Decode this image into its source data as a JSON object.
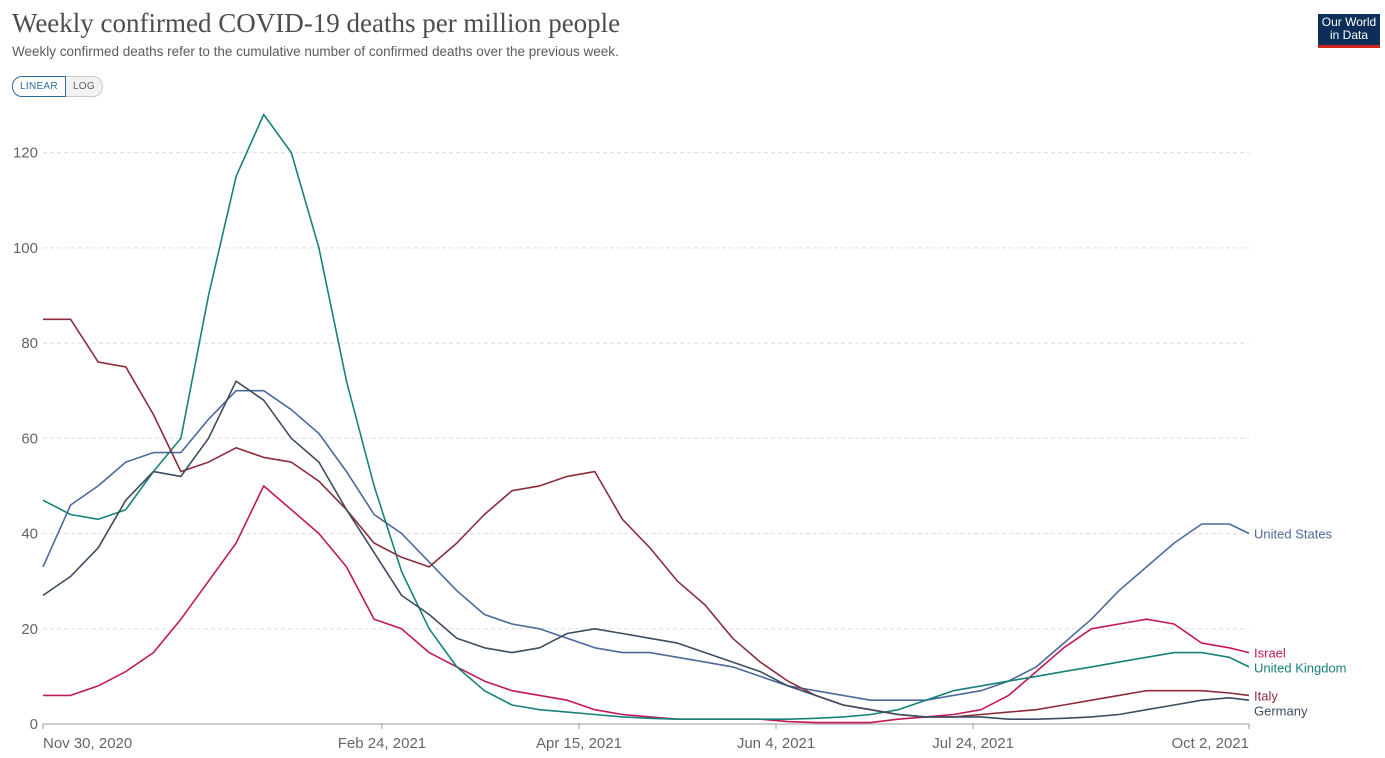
{
  "header": {
    "title": "Weekly confirmed COVID-19 deaths per million people",
    "subtitle": "Weekly confirmed deaths refer to the cumulative number of confirmed deaths over the previous week.",
    "logo_line1": "Our World",
    "logo_line2": "in Data"
  },
  "controls": {
    "linear_label": "LINEAR",
    "log_label": "LOG",
    "selected": "LINEAR"
  },
  "chart_data": {
    "type": "line",
    "title": "Weekly confirmed COVID-19 deaths per million people",
    "subtitle": "Weekly confirmed deaths refer to the cumulative number of confirmed deaths over the previous week.",
    "xlabel": "",
    "ylabel": "",
    "x_range": [
      "2020-11-30",
      "2021-10-02"
    ],
    "ylim": [
      0,
      130
    ],
    "x_ticks": [
      "Nov 30, 2020",
      "Feb 24, 2021",
      "Apr 15, 2021",
      "Jun 4, 2021",
      "Jul 24, 2021",
      "Oct 2, 2021"
    ],
    "y_ticks": [
      0,
      20,
      40,
      60,
      80,
      100,
      120
    ],
    "grid": "horizontal dashed",
    "legend": "inline labels at line ends (right)",
    "series": [
      {
        "name": "United States",
        "color": "#4c6a9c",
        "points": [
          [
            "2020-11-30",
            33
          ],
          [
            "2020-12-07",
            46
          ],
          [
            "2020-12-14",
            50
          ],
          [
            "2020-12-21",
            55
          ],
          [
            "2020-12-28",
            57
          ],
          [
            "2021-01-04",
            57
          ],
          [
            "2021-01-11",
            64
          ],
          [
            "2021-01-18",
            70
          ],
          [
            "2021-01-25",
            70
          ],
          [
            "2021-02-01",
            66
          ],
          [
            "2021-02-08",
            61
          ],
          [
            "2021-02-15",
            53
          ],
          [
            "2021-02-22",
            44
          ],
          [
            "2021-03-01",
            40
          ],
          [
            "2021-03-08",
            34
          ],
          [
            "2021-03-15",
            28
          ],
          [
            "2021-03-22",
            23
          ],
          [
            "2021-03-29",
            21
          ],
          [
            "2021-04-05",
            20
          ],
          [
            "2021-04-12",
            18
          ],
          [
            "2021-04-19",
            16
          ],
          [
            "2021-04-26",
            15
          ],
          [
            "2021-05-03",
            15
          ],
          [
            "2021-05-10",
            14
          ],
          [
            "2021-05-17",
            13
          ],
          [
            "2021-05-24",
            12
          ],
          [
            "2021-05-31",
            10
          ],
          [
            "2021-06-07",
            8
          ],
          [
            "2021-06-14",
            7
          ],
          [
            "2021-06-21",
            6
          ],
          [
            "2021-06-28",
            5
          ],
          [
            "2021-07-05",
            5
          ],
          [
            "2021-07-12",
            5
          ],
          [
            "2021-07-19",
            6
          ],
          [
            "2021-07-26",
            7
          ],
          [
            "2021-08-02",
            9
          ],
          [
            "2021-08-09",
            12
          ],
          [
            "2021-08-16",
            17
          ],
          [
            "2021-08-23",
            22
          ],
          [
            "2021-08-30",
            28
          ],
          [
            "2021-09-06",
            33
          ],
          [
            "2021-09-13",
            38
          ],
          [
            "2021-09-20",
            42
          ],
          [
            "2021-09-27",
            42
          ],
          [
            "2021-10-02",
            40
          ]
        ]
      },
      {
        "name": "Israel",
        "color": "#c2185b",
        "points": [
          [
            "2020-11-30",
            6
          ],
          [
            "2020-12-07",
            6
          ],
          [
            "2020-12-14",
            8
          ],
          [
            "2020-12-21",
            11
          ],
          [
            "2020-12-28",
            15
          ],
          [
            "2021-01-04",
            22
          ],
          [
            "2021-01-11",
            30
          ],
          [
            "2021-01-18",
            38
          ],
          [
            "2021-01-25",
            50
          ],
          [
            "2021-02-01",
            45
          ],
          [
            "2021-02-08",
            40
          ],
          [
            "2021-02-15",
            33
          ],
          [
            "2021-02-22",
            22
          ],
          [
            "2021-03-01",
            20
          ],
          [
            "2021-03-08",
            15
          ],
          [
            "2021-03-15",
            12
          ],
          [
            "2021-03-22",
            9
          ],
          [
            "2021-03-29",
            7
          ],
          [
            "2021-04-05",
            6
          ],
          [
            "2021-04-12",
            5
          ],
          [
            "2021-04-19",
            3
          ],
          [
            "2021-04-26",
            2
          ],
          [
            "2021-05-03",
            1.5
          ],
          [
            "2021-05-10",
            1
          ],
          [
            "2021-05-17",
            1
          ],
          [
            "2021-05-24",
            1
          ],
          [
            "2021-05-31",
            1
          ],
          [
            "2021-06-07",
            0.5
          ],
          [
            "2021-06-14",
            0.3
          ],
          [
            "2021-06-21",
            0.3
          ],
          [
            "2021-06-28",
            0.3
          ],
          [
            "2021-07-05",
            1
          ],
          [
            "2021-07-12",
            1.5
          ],
          [
            "2021-07-19",
            2
          ],
          [
            "2021-07-26",
            3
          ],
          [
            "2021-08-02",
            6
          ],
          [
            "2021-08-09",
            11
          ],
          [
            "2021-08-16",
            16
          ],
          [
            "2021-08-23",
            20
          ],
          [
            "2021-08-30",
            21
          ],
          [
            "2021-09-06",
            22
          ],
          [
            "2021-09-13",
            21
          ],
          [
            "2021-09-20",
            17
          ],
          [
            "2021-09-27",
            16
          ],
          [
            "2021-10-02",
            15
          ]
        ]
      },
      {
        "name": "United Kingdom",
        "color": "#18817a",
        "points": [
          [
            "2020-11-30",
            47
          ],
          [
            "2020-12-07",
            44
          ],
          [
            "2020-12-14",
            43
          ],
          [
            "2020-12-21",
            45
          ],
          [
            "2020-12-28",
            53
          ],
          [
            "2021-01-04",
            60
          ],
          [
            "2021-01-11",
            90
          ],
          [
            "2021-01-18",
            115
          ],
          [
            "2021-01-25",
            128
          ],
          [
            "2021-02-01",
            120
          ],
          [
            "2021-02-08",
            100
          ],
          [
            "2021-02-15",
            72
          ],
          [
            "2021-02-22",
            50
          ],
          [
            "2021-03-01",
            32
          ],
          [
            "2021-03-08",
            20
          ],
          [
            "2021-03-15",
            12
          ],
          [
            "2021-03-22",
            7
          ],
          [
            "2021-03-29",
            4
          ],
          [
            "2021-04-05",
            3
          ],
          [
            "2021-04-12",
            2.5
          ],
          [
            "2021-04-19",
            2
          ],
          [
            "2021-04-26",
            1.5
          ],
          [
            "2021-05-03",
            1.2
          ],
          [
            "2021-05-10",
            1
          ],
          [
            "2021-05-17",
            1
          ],
          [
            "2021-05-24",
            1
          ],
          [
            "2021-05-31",
            1
          ],
          [
            "2021-06-07",
            1
          ],
          [
            "2021-06-14",
            1.2
          ],
          [
            "2021-06-21",
            1.5
          ],
          [
            "2021-06-28",
            2
          ],
          [
            "2021-07-05",
            3
          ],
          [
            "2021-07-12",
            5
          ],
          [
            "2021-07-19",
            7
          ],
          [
            "2021-07-26",
            8
          ],
          [
            "2021-08-02",
            9
          ],
          [
            "2021-08-09",
            10
          ],
          [
            "2021-08-16",
            11
          ],
          [
            "2021-08-23",
            12
          ],
          [
            "2021-08-30",
            13
          ],
          [
            "2021-09-06",
            14
          ],
          [
            "2021-09-13",
            15
          ],
          [
            "2021-09-20",
            15
          ],
          [
            "2021-09-27",
            14
          ],
          [
            "2021-10-02",
            12
          ]
        ]
      },
      {
        "name": "Italy",
        "color": "#8b2d3c",
        "points": [
          [
            "2020-11-30",
            85
          ],
          [
            "2020-12-07",
            85
          ],
          [
            "2020-12-14",
            76
          ],
          [
            "2020-12-21",
            75
          ],
          [
            "2020-12-28",
            65
          ],
          [
            "2021-01-04",
            53
          ],
          [
            "2021-01-11",
            55
          ],
          [
            "2021-01-18",
            58
          ],
          [
            "2021-01-25",
            56
          ],
          [
            "2021-02-01",
            55
          ],
          [
            "2021-02-08",
            51
          ],
          [
            "2021-02-15",
            45
          ],
          [
            "2021-02-22",
            38
          ],
          [
            "2021-03-01",
            35
          ],
          [
            "2021-03-08",
            33
          ],
          [
            "2021-03-15",
            38
          ],
          [
            "2021-03-22",
            44
          ],
          [
            "2021-03-29",
            49
          ],
          [
            "2021-04-05",
            50
          ],
          [
            "2021-04-12",
            52
          ],
          [
            "2021-04-19",
            53
          ],
          [
            "2021-04-26",
            43
          ],
          [
            "2021-05-03",
            37
          ],
          [
            "2021-05-10",
            30
          ],
          [
            "2021-05-17",
            25
          ],
          [
            "2021-05-24",
            18
          ],
          [
            "2021-05-31",
            13
          ],
          [
            "2021-06-07",
            9
          ],
          [
            "2021-06-14",
            6
          ],
          [
            "2021-06-21",
            4
          ],
          [
            "2021-06-28",
            3
          ],
          [
            "2021-07-05",
            2
          ],
          [
            "2021-07-12",
            1.5
          ],
          [
            "2021-07-19",
            1.5
          ],
          [
            "2021-07-26",
            2
          ],
          [
            "2021-08-02",
            2.5
          ],
          [
            "2021-08-09",
            3
          ],
          [
            "2021-08-16",
            4
          ],
          [
            "2021-08-23",
            5
          ],
          [
            "2021-08-30",
            6
          ],
          [
            "2021-09-06",
            7
          ],
          [
            "2021-09-13",
            7
          ],
          [
            "2021-09-20",
            7
          ],
          [
            "2021-09-27",
            6.5
          ],
          [
            "2021-10-02",
            6
          ]
        ]
      },
      {
        "name": "Germany",
        "color": "#3d4c60",
        "points": [
          [
            "2020-11-30",
            27
          ],
          [
            "2020-12-07",
            31
          ],
          [
            "2020-12-14",
            37
          ],
          [
            "2020-12-21",
            47
          ],
          [
            "2020-12-28",
            53
          ],
          [
            "2021-01-04",
            52
          ],
          [
            "2021-01-11",
            60
          ],
          [
            "2021-01-18",
            72
          ],
          [
            "2021-01-25",
            68
          ],
          [
            "2021-02-01",
            60
          ],
          [
            "2021-02-08",
            55
          ],
          [
            "2021-02-15",
            45
          ],
          [
            "2021-02-22",
            36
          ],
          [
            "2021-03-01",
            27
          ],
          [
            "2021-03-08",
            23
          ],
          [
            "2021-03-15",
            18
          ],
          [
            "2021-03-22",
            16
          ],
          [
            "2021-03-29",
            15
          ],
          [
            "2021-04-05",
            16
          ],
          [
            "2021-04-12",
            19
          ],
          [
            "2021-04-19",
            20
          ],
          [
            "2021-04-26",
            19
          ],
          [
            "2021-05-03",
            18
          ],
          [
            "2021-05-10",
            17
          ],
          [
            "2021-05-17",
            15
          ],
          [
            "2021-05-24",
            13
          ],
          [
            "2021-05-31",
            11
          ],
          [
            "2021-06-07",
            8
          ],
          [
            "2021-06-14",
            6
          ],
          [
            "2021-06-21",
            4
          ],
          [
            "2021-06-28",
            3
          ],
          [
            "2021-07-05",
            2
          ],
          [
            "2021-07-12",
            1.5
          ],
          [
            "2021-07-19",
            1.5
          ],
          [
            "2021-07-26",
            1.5
          ],
          [
            "2021-08-02",
            1
          ],
          [
            "2021-08-09",
            1
          ],
          [
            "2021-08-16",
            1.2
          ],
          [
            "2021-08-23",
            1.5
          ],
          [
            "2021-08-30",
            2
          ],
          [
            "2021-09-06",
            3
          ],
          [
            "2021-09-13",
            4
          ],
          [
            "2021-09-20",
            5
          ],
          [
            "2021-09-27",
            5.5
          ],
          [
            "2021-10-02",
            5
          ]
        ]
      }
    ]
  }
}
